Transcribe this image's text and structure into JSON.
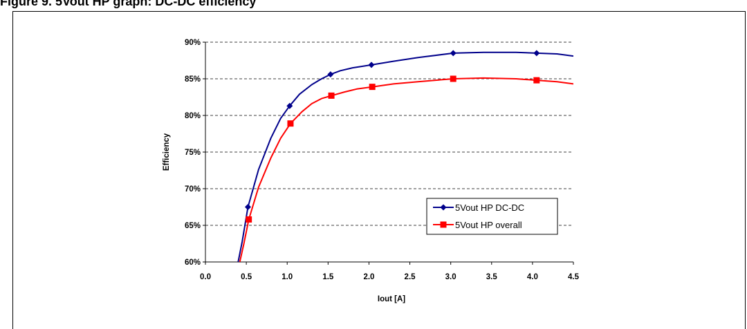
{
  "page": {
    "caption": "Figure 9.      5Vout HP graph: DC-DC efficiency"
  },
  "chart_data": {
    "type": "line",
    "title": "",
    "xlabel": "Iout [A]",
    "ylabel": "Efficiency",
    "xlim": [
      0.0,
      4.5
    ],
    "ylim": [
      60,
      90
    ],
    "x_ticks": [
      "0.0",
      "0.5",
      "1.0",
      "1.5",
      "2.0",
      "2.5",
      "3.0",
      "3.5",
      "4.0",
      "4.5"
    ],
    "y_ticks": [
      "60%",
      "65%",
      "70%",
      "75%",
      "80%",
      "85%",
      "90%"
    ],
    "grid": "horizontal dashed",
    "legend_position": "right-center",
    "series": [
      {
        "name": "5Vout HP DC-DC",
        "color": "#00008B",
        "marker": "diamond",
        "points": [
          [
            0.52,
            67.5
          ],
          [
            1.03,
            81.3
          ],
          [
            1.53,
            85.6
          ],
          [
            2.03,
            86.9
          ],
          [
            3.03,
            88.5
          ],
          [
            4.05,
            88.5
          ]
        ],
        "curve": [
          [
            0.4,
            60.0
          ],
          [
            0.45,
            62.8
          ],
          [
            0.52,
            67.5
          ],
          [
            0.65,
            72.6
          ],
          [
            0.8,
            76.9
          ],
          [
            0.92,
            79.6
          ],
          [
            1.03,
            81.3
          ],
          [
            1.15,
            82.9
          ],
          [
            1.3,
            84.2
          ],
          [
            1.42,
            85.0
          ],
          [
            1.53,
            85.6
          ],
          [
            1.65,
            86.1
          ],
          [
            1.8,
            86.5
          ],
          [
            2.03,
            86.9
          ],
          [
            2.3,
            87.4
          ],
          [
            2.6,
            87.9
          ],
          [
            3.03,
            88.5
          ],
          [
            3.4,
            88.6
          ],
          [
            3.8,
            88.6
          ],
          [
            4.05,
            88.5
          ],
          [
            4.3,
            88.4
          ],
          [
            4.5,
            88.1
          ]
        ]
      },
      {
        "name": "5Vout HP overall",
        "color": "#FF0000",
        "marker": "square",
        "points": [
          [
            0.53,
            65.8
          ],
          [
            1.04,
            78.9
          ],
          [
            1.54,
            82.7
          ],
          [
            2.04,
            83.9
          ],
          [
            3.03,
            85.0
          ],
          [
            4.05,
            84.8
          ]
        ],
        "curve": [
          [
            0.42,
            60.0
          ],
          [
            0.47,
            62.5
          ],
          [
            0.53,
            65.8
          ],
          [
            0.65,
            70.2
          ],
          [
            0.8,
            74.2
          ],
          [
            0.92,
            76.9
          ],
          [
            1.04,
            78.9
          ],
          [
            1.18,
            80.5
          ],
          [
            1.3,
            81.6
          ],
          [
            1.42,
            82.3
          ],
          [
            1.54,
            82.7
          ],
          [
            1.7,
            83.2
          ],
          [
            1.85,
            83.6
          ],
          [
            2.04,
            83.9
          ],
          [
            2.3,
            84.3
          ],
          [
            2.6,
            84.6
          ],
          [
            3.03,
            85.0
          ],
          [
            3.4,
            85.1
          ],
          [
            3.8,
            85.0
          ],
          [
            4.05,
            84.8
          ],
          [
            4.3,
            84.6
          ],
          [
            4.5,
            84.3
          ]
        ]
      }
    ]
  }
}
